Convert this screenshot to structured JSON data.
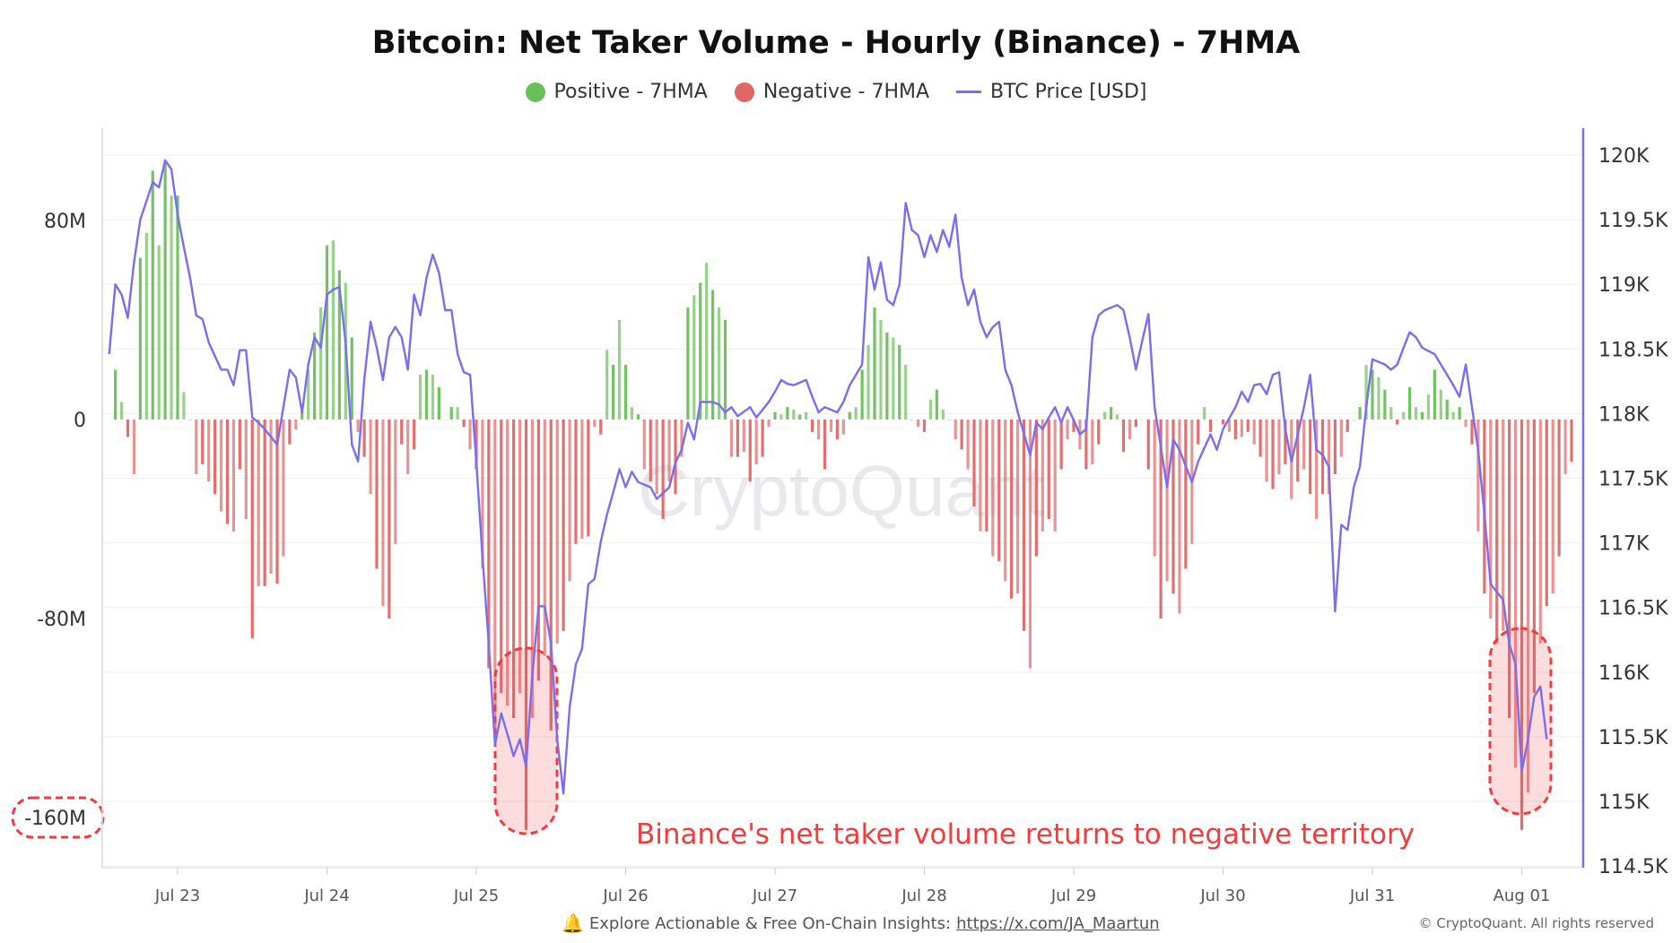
{
  "chart_data": {
    "type": "bar+line",
    "title": "Bitcoin: Net Taker Volume - Hourly (Binance) - 7HMA",
    "legend": [
      {
        "name": "Positive - 7HMA",
        "color": "#6abf59",
        "marker": "dot"
      },
      {
        "name": "Negative - 7HMA",
        "color": "#e06666",
        "marker": "dot"
      },
      {
        "name": "BTC Price [USD]",
        "color": "#7b6cf0",
        "marker": "line"
      }
    ],
    "legend_position": "top",
    "grid": true,
    "x_ticks": [
      "Jul 23",
      "Jul 24",
      "Jul 25",
      "Jul 26",
      "Jul 27",
      "Jul 28",
      "Jul 29",
      "Jul 30",
      "Jul 31",
      "Aug 01"
    ],
    "y_left": {
      "ticks": [
        "80M",
        "0",
        "-80M",
        "-160M"
      ],
      "tick_values": [
        80,
        0,
        -80,
        -160
      ],
      "unit": "M",
      "range": [
        -180,
        117
      ]
    },
    "y_right": {
      "ticks": [
        "120K",
        "119.5K",
        "119K",
        "118.5K",
        "118K",
        "117.5K",
        "117K",
        "116.5K",
        "116K",
        "115.5K",
        "115K",
        "114.5K"
      ],
      "range": [
        114500,
        120200
      ]
    },
    "net_taker_volume": {
      "start": "Jul 22 14:00",
      "interval": "1h",
      "unit": "M",
      "values": [
        20,
        7,
        -7,
        -22,
        65,
        75,
        100,
        70,
        104,
        90,
        90,
        11,
        0,
        -22,
        -18,
        -25,
        -30,
        -37,
        -42,
        -45,
        -20,
        -40,
        -88,
        -67,
        -67,
        -62,
        -66,
        -55,
        -10,
        -4,
        5,
        20,
        35,
        45,
        70,
        72,
        60,
        55,
        33,
        -5,
        -15,
        -30,
        -60,
        -75,
        -80,
        -50,
        -10,
        -22,
        -12,
        18,
        20,
        18,
        13,
        0,
        5,
        5,
        -3,
        -12,
        -20,
        -60,
        -100,
        -125,
        -110,
        -115,
        -120,
        -110,
        -165,
        -120,
        -105,
        -95,
        -125,
        -90,
        -85,
        -65,
        -50,
        -48,
        -47,
        -3,
        -6,
        28,
        22,
        40,
        22,
        5,
        2,
        -20,
        -25,
        -30,
        -40,
        -25,
        -30,
        -15,
        45,
        50,
        55,
        63,
        52,
        45,
        40,
        -15,
        -15,
        -13,
        -25,
        -18,
        -15,
        -3,
        3,
        2,
        5,
        4,
        2,
        3,
        -5,
        -8,
        -20,
        -5,
        -8,
        -6,
        3,
        5,
        20,
        30,
        45,
        40,
        35,
        33,
        30,
        22,
        0,
        -3,
        -5,
        8,
        12,
        4,
        0,
        -8,
        -12,
        -20,
        -35,
        -45,
        -45,
        -55,
        -57,
        -65,
        -72,
        -70,
        -85,
        -100,
        -55,
        -45,
        -40,
        -45,
        -20,
        -8,
        -5,
        -12,
        -20,
        -18,
        -10,
        3,
        5,
        2,
        -13,
        -8,
        -3,
        0,
        -20,
        -55,
        -80,
        -65,
        -70,
        -78,
        -60,
        -50,
        -10,
        5,
        -5,
        0,
        -2,
        -5,
        -8,
        -7,
        -5,
        -10,
        -15,
        -25,
        -28,
        -22,
        -18,
        -32,
        -25,
        -20,
        -30,
        -40,
        -30,
        -30,
        -22,
        -15,
        -5,
        0,
        5,
        22,
        20,
        17,
        12,
        5,
        -2,
        3,
        13,
        5,
        3,
        10,
        20,
        12,
        8,
        3,
        5,
        -3,
        -10,
        -45,
        -70,
        -80,
        -90,
        -85,
        -120,
        -140,
        -165,
        -150,
        -110,
        -90,
        -75,
        -70,
        -55,
        -22,
        -17
      ]
    },
    "btc_price": [
      [
        "Jul 22 13:00",
        118460
      ],
      [
        "Jul 22 14:00",
        119000
      ],
      [
        "Jul 22 15:00",
        118920
      ],
      [
        "Jul 22 16:00",
        118740
      ],
      [
        "Jul 22 17:00",
        119170
      ],
      [
        "Jul 22 18:00",
        119500
      ],
      [
        "Jul 22 20:00",
        119790
      ],
      [
        "Jul 22 21:00",
        119750
      ],
      [
        "Jul 22 22:00",
        119960
      ],
      [
        "Jul 22 23:00",
        119890
      ],
      [
        "Jul 23 00:00",
        119540
      ],
      [
        "Jul 23 01:00",
        119290
      ],
      [
        "Jul 23 02:00",
        119050
      ],
      [
        "Jul 23 03:00",
        118760
      ],
      [
        "Jul 23 04:00",
        118730
      ],
      [
        "Jul 23 05:00",
        118550
      ],
      [
        "Jul 23 07:00",
        118340
      ],
      [
        "Jul 23 08:00",
        118340
      ],
      [
        "Jul 23 09:00",
        118220
      ],
      [
        "Jul 23 10:00",
        118490
      ],
      [
        "Jul 23 11:00",
        118490
      ],
      [
        "Jul 23 12:00",
        117970
      ],
      [
        "Jul 23 13:00",
        117930
      ],
      [
        "Jul 23 14:00",
        117880
      ],
      [
        "Jul 23 16:00",
        117760
      ],
      [
        "Jul 23 17:00",
        118050
      ],
      [
        "Jul 23 18:00",
        118340
      ],
      [
        "Jul 23 19:00",
        118280
      ],
      [
        "Jul 23 20:00",
        118010
      ],
      [
        "Jul 23 21:00",
        118380
      ],
      [
        "Jul 23 22:00",
        118590
      ],
      [
        "Jul 23 23:00",
        118510
      ],
      [
        "Jul 24 00:00",
        118920
      ],
      [
        "Jul 24 01:00",
        118960
      ],
      [
        "Jul 24 02:00",
        118980
      ],
      [
        "Jul 24 03:00",
        118550
      ],
      [
        "Jul 24 04:00",
        117760
      ],
      [
        "Jul 24 05:00",
        117630
      ],
      [
        "Jul 24 06:00",
        118260
      ],
      [
        "Jul 24 07:00",
        118710
      ],
      [
        "Jul 24 08:00",
        118510
      ],
      [
        "Jul 24 09:00",
        118260
      ],
      [
        "Jul 24 10:00",
        118590
      ],
      [
        "Jul 24 11:00",
        118670
      ],
      [
        "Jul 24 12:00",
        118590
      ],
      [
        "Jul 24 13:00",
        118340
      ],
      [
        "Jul 24 14:00",
        118920
      ],
      [
        "Jul 24 15:00",
        118760
      ],
      [
        "Jul 24 16:00",
        119050
      ],
      [
        "Jul 24 17:00",
        119230
      ],
      [
        "Jul 24 18:00",
        119090
      ],
      [
        "Jul 24 19:00",
        118800
      ],
      [
        "Jul 24 20:00",
        118800
      ],
      [
        "Jul 24 21:00",
        118460
      ],
      [
        "Jul 24 22:00",
        118320
      ],
      [
        "Jul 24 23:00",
        118300
      ],
      [
        "Jul 25 00:00",
        117630
      ],
      [
        "Jul 25 01:00",
        116890
      ],
      [
        "Jul 25 02:00",
        116220
      ],
      [
        "Jul 25 03:00",
        115440
      ],
      [
        "Jul 25 04:00",
        115680
      ],
      [
        "Jul 25 05:00",
        115520
      ],
      [
        "Jul 25 06:00",
        115350
      ],
      [
        "Jul 25 07:00",
        115480
      ],
      [
        "Jul 25 08:00",
        115270
      ],
      [
        "Jul 25 09:00",
        115970
      ],
      [
        "Jul 25 10:00",
        116510
      ],
      [
        "Jul 25 11:00",
        116510
      ],
      [
        "Jul 25 12:00",
        116220
      ],
      [
        "Jul 25 13:00",
        115480
      ],
      [
        "Jul 25 14:00",
        115060
      ],
      [
        "Jul 25 15:00",
        115730
      ],
      [
        "Jul 25 16:00",
        116060
      ],
      [
        "Jul 25 17:00",
        116180
      ],
      [
        "Jul 25 18:00",
        116680
      ],
      [
        "Jul 25 19:00",
        116720
      ],
      [
        "Jul 25 20:00",
        117010
      ],
      [
        "Jul 25 21:00",
        117220
      ],
      [
        "Jul 25 22:00",
        117390
      ],
      [
        "Jul 25 23:00",
        117570
      ],
      [
        "Jul 26 00:00",
        117430
      ],
      [
        "Jul 26 01:00",
        117550
      ],
      [
        "Jul 26 02:00",
        117470
      ],
      [
        "Jul 26 04:00",
        117430
      ],
      [
        "Jul 26 05:00",
        117340
      ],
      [
        "Jul 26 07:00",
        117430
      ],
      [
        "Jul 26 08:00",
        117620
      ],
      [
        "Jul 26 09:00",
        117720
      ],
      [
        "Jul 26 10:00",
        117930
      ],
      [
        "Jul 26 11:00",
        117800
      ],
      [
        "Jul 26 12:00",
        118090
      ],
      [
        "Jul 26 14:00",
        118090
      ],
      [
        "Jul 26 15:00",
        118070
      ],
      [
        "Jul 26 16:00",
        118010
      ],
      [
        "Jul 26 17:00",
        118050
      ],
      [
        "Jul 26 18:00",
        117980
      ],
      [
        "Jul 26 20:00",
        118050
      ],
      [
        "Jul 26 21:00",
        117970
      ],
      [
        "Jul 26 23:00",
        118090
      ],
      [
        "Jul 27 00:00",
        118170
      ],
      [
        "Jul 27 01:00",
        118260
      ],
      [
        "Jul 27 02:00",
        118230
      ],
      [
        "Jul 27 03:00",
        118220
      ],
      [
        "Jul 27 05:00",
        118260
      ],
      [
        "Jul 27 06:00",
        118130
      ],
      [
        "Jul 27 07:00",
        118010
      ],
      [
        "Jul 27 08:00",
        118050
      ],
      [
        "Jul 27 10:00",
        118010
      ],
      [
        "Jul 27 11:00",
        118090
      ],
      [
        "Jul 27 12:00",
        118220
      ],
      [
        "Jul 27 14:00",
        118380
      ],
      [
        "Jul 27 15:00",
        119210
      ],
      [
        "Jul 27 16:00",
        118960
      ],
      [
        "Jul 27 17:00",
        119170
      ],
      [
        "Jul 27 18:00",
        118880
      ],
      [
        "Jul 27 19:00",
        118840
      ],
      [
        "Jul 27 20:00",
        119000
      ],
      [
        "Jul 27 21:00",
        119630
      ],
      [
        "Jul 27 22:00",
        119420
      ],
      [
        "Jul 27 23:00",
        119380
      ],
      [
        "Jul 28 00:00",
        119210
      ],
      [
        "Jul 28 01:00",
        119380
      ],
      [
        "Jul 28 02:00",
        119250
      ],
      [
        "Jul 28 03:00",
        119420
      ],
      [
        "Jul 28 04:00",
        119290
      ],
      [
        "Jul 28 05:00",
        119540
      ],
      [
        "Jul 28 06:00",
        119050
      ],
      [
        "Jul 28 07:00",
        118840
      ],
      [
        "Jul 28 08:00",
        118960
      ],
      [
        "Jul 28 09:00",
        118710
      ],
      [
        "Jul 28 10:00",
        118590
      ],
      [
        "Jul 28 11:00",
        118670
      ],
      [
        "Jul 28 12:00",
        118710
      ],
      [
        "Jul 28 13:00",
        118340
      ],
      [
        "Jul 28 14:00",
        118220
      ],
      [
        "Jul 28 15:00",
        118010
      ],
      [
        "Jul 28 17:00",
        117680
      ],
      [
        "Jul 28 18:00",
        117930
      ],
      [
        "Jul 28 19:00",
        117880
      ],
      [
        "Jul 28 20:00",
        117970
      ],
      [
        "Jul 28 21:00",
        118050
      ],
      [
        "Jul 28 22:00",
        117930
      ],
      [
        "Jul 28 23:00",
        118050
      ],
      [
        "Jul 29 00:00",
        117950
      ],
      [
        "Jul 29 01:00",
        117840
      ],
      [
        "Jul 29 02:00",
        117880
      ],
      [
        "Jul 29 03:00",
        118590
      ],
      [
        "Jul 29 04:00",
        118760
      ],
      [
        "Jul 29 05:00",
        118800
      ],
      [
        "Jul 29 07:00",
        118840
      ],
      [
        "Jul 29 08:00",
        118800
      ],
      [
        "Jul 29 09:00",
        118590
      ],
      [
        "Jul 29 10:00",
        118340
      ],
      [
        "Jul 29 11:00",
        118560
      ],
      [
        "Jul 29 12:00",
        118770
      ],
      [
        "Jul 29 13:00",
        118050
      ],
      [
        "Jul 29 15:00",
        117430
      ],
      [
        "Jul 29 16:00",
        117800
      ],
      [
        "Jul 29 17:00",
        117720
      ],
      [
        "Jul 29 19:00",
        117470
      ],
      [
        "Jul 29 20:00",
        117630
      ],
      [
        "Jul 29 22:00",
        117840
      ],
      [
        "Jul 29 23:00",
        117720
      ],
      [
        "Jul 30 00:00",
        117880
      ],
      [
        "Jul 30 02:00",
        118050
      ],
      [
        "Jul 30 03:00",
        118170
      ],
      [
        "Jul 30 04:00",
        118090
      ],
      [
        "Jul 30 05:00",
        118220
      ],
      [
        "Jul 30 06:00",
        118230
      ],
      [
        "Jul 30 07:00",
        118150
      ],
      [
        "Jul 30 08:00",
        118300
      ],
      [
        "Jul 30 09:00",
        118320
      ],
      [
        "Jul 30 10:00",
        117880
      ],
      [
        "Jul 30 11:00",
        117630
      ],
      [
        "Jul 30 12:00",
        117840
      ],
      [
        "Jul 30 13:00",
        118050
      ],
      [
        "Jul 30 14:00",
        118300
      ],
      [
        "Jul 30 15:00",
        117720
      ],
      [
        "Jul 30 16:00",
        117680
      ],
      [
        "Jul 30 17:00",
        117590
      ],
      [
        "Jul 30 18:00",
        116470
      ],
      [
        "Jul 30 19:00",
        117140
      ],
      [
        "Jul 30 20:00",
        117100
      ],
      [
        "Jul 30 21:00",
        117430
      ],
      [
        "Jul 30 22:00",
        117590
      ],
      [
        "Jul 30 23:00",
        118050
      ],
      [
        "Jul 31 00:00",
        118420
      ],
      [
        "Jul 31 02:00",
        118380
      ],
      [
        "Jul 31 03:00",
        118340
      ],
      [
        "Jul 31 04:00",
        118380
      ],
      [
        "Jul 31 05:00",
        118510
      ],
      [
        "Jul 31 06:00",
        118630
      ],
      [
        "Jul 31 07:00",
        118590
      ],
      [
        "Jul 31 08:00",
        118510
      ],
      [
        "Jul 31 10:00",
        118460
      ],
      [
        "Jul 31 11:00",
        118380
      ],
      [
        "Jul 31 12:00",
        118300
      ],
      [
        "Jul 31 13:00",
        118220
      ],
      [
        "Jul 31 14:00",
        118130
      ],
      [
        "Jul 31 15:00",
        118380
      ],
      [
        "Jul 31 16:00",
        118050
      ],
      [
        "Jul 31 17:00",
        117720
      ],
      [
        "Jul 31 18:00",
        117220
      ],
      [
        "Jul 31 19:00",
        116680
      ],
      [
        "Jul 31 21:00",
        116560
      ],
      [
        "Jul 31 22:00",
        116220
      ],
      [
        "Jul 31 23:00",
        116060
      ],
      [
        "Aug 01 00:00",
        115230
      ],
      [
        "Aug 01 01:00",
        115480
      ],
      [
        "Aug 01 02:00",
        115810
      ],
      [
        "Aug 01 03:00",
        115890
      ],
      [
        "Aug 01 04:00",
        115480
      ]
    ],
    "annotations": {
      "text": "Binance's net taker volume returns to negative territory",
      "color": "#f03c3c",
      "highlighted": [
        "-160M",
        "Jul 25 price low",
        "Aug 01 price low"
      ]
    },
    "watermark": "CryptoQuant"
  },
  "footer": {
    "icon": "bell-icon",
    "text": "Explore Actionable & Free On-Chain Insights:",
    "link": "https://x.com/JA_Maartun",
    "copyright": "© CryptoQuant. All rights reserved"
  }
}
